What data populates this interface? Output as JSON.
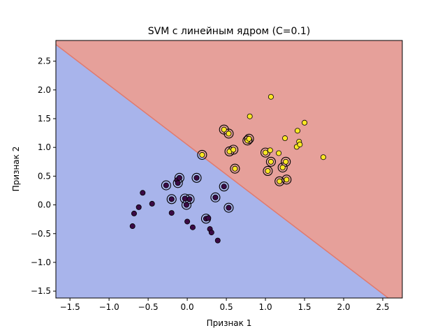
{
  "chart_data": {
    "type": "scatter",
    "title": "SVM с линейным ядром (C=0.1)",
    "xlabel": "Признак 1",
    "ylabel": "Признак 2",
    "xlim": [
      -1.68,
      2.75
    ],
    "ylim": [
      -1.62,
      2.86
    ],
    "x_ticks": [
      -1.5,
      -1.0,
      -0.5,
      0.0,
      0.5,
      1.0,
      1.5,
      2.0,
      2.5
    ],
    "x_tick_labels": [
      "−1.5",
      "−1.0",
      "−0.5",
      "0.0",
      "0.5",
      "1.0",
      "1.5",
      "2.0",
      "2.5"
    ],
    "y_ticks": [
      -1.5,
      -1.0,
      -0.5,
      0.0,
      0.5,
      1.0,
      1.5,
      2.0,
      2.5
    ],
    "y_tick_labels": [
      "−1.5",
      "−1.0",
      "−0.5",
      "0.0",
      "0.5",
      "1.0",
      "1.5",
      "2.0",
      "2.5"
    ],
    "grid": false,
    "decision_boundary": {
      "points": [
        [
          -1.68,
          2.79
        ],
        [
          2.57,
          -1.62
        ]
      ]
    },
    "region_colors": {
      "class_0": "#a8b4eb",
      "class_1": "#e6a09a"
    },
    "boundary_color": "#e07a6e",
    "point_colors": {
      "class_0": "#3b0a45",
      "class_1": "#fde725"
    },
    "support_vector_ring_color": "#000000",
    "series": [
      {
        "class": 0,
        "points": [
          [
            -0.57,
            0.21
          ],
          [
            -0.62,
            -0.04
          ],
          [
            -0.68,
            -0.15
          ],
          [
            -0.7,
            -0.37
          ],
          [
            -0.45,
            0.02
          ],
          [
            -0.2,
            -0.14
          ],
          [
            -0.13,
            0.43
          ],
          [
            -0.27,
            0.34
          ],
          [
            -0.2,
            0.1
          ],
          [
            -0.12,
            0.38
          ],
          [
            -0.1,
            0.47
          ],
          [
            -0.03,
            0.11
          ],
          [
            -0.01,
            0.0
          ],
          [
            0.03,
            0.1
          ],
          [
            0.12,
            0.47
          ],
          [
            0.0,
            -0.29
          ],
          [
            0.07,
            -0.39
          ],
          [
            0.24,
            -0.24
          ],
          [
            0.27,
            -0.23
          ],
          [
            0.29,
            -0.42
          ],
          [
            0.31,
            -0.48
          ],
          [
            0.36,
            0.13
          ],
          [
            0.39,
            -0.62
          ],
          [
            0.47,
            0.32
          ],
          [
            0.53,
            -0.05
          ],
          [
            0.61,
            0.63
          ]
        ]
      },
      {
        "class": 1,
        "points": [
          [
            0.19,
            0.87
          ],
          [
            0.47,
            1.31
          ],
          [
            0.53,
            1.24
          ],
          [
            0.54,
            0.93
          ],
          [
            0.59,
            0.96
          ],
          [
            0.61,
            0.63
          ],
          [
            0.77,
            1.12
          ],
          [
            0.79,
            1.15
          ],
          [
            0.8,
            1.54
          ],
          [
            1.0,
            0.91
          ],
          [
            1.03,
            0.59
          ],
          [
            1.06,
            0.95
          ],
          [
            1.07,
            0.75
          ],
          [
            1.07,
            1.88
          ],
          [
            1.18,
            0.41
          ],
          [
            1.17,
            0.9
          ],
          [
            1.22,
            0.65
          ],
          [
            1.25,
            1.16
          ],
          [
            1.26,
            0.75
          ],
          [
            1.27,
            0.44
          ],
          [
            1.4,
            1.01
          ],
          [
            1.41,
            1.29
          ],
          [
            1.43,
            1.1
          ],
          [
            1.44,
            1.05
          ],
          [
            1.5,
            1.43
          ],
          [
            1.74,
            0.83
          ]
        ]
      }
    ],
    "support_vectors": [
      [
        -0.27,
        0.34
      ],
      [
        -0.2,
        0.1
      ],
      [
        -0.12,
        0.38
      ],
      [
        -0.1,
        0.47
      ],
      [
        -0.03,
        0.11
      ],
      [
        -0.01,
        0.0
      ],
      [
        0.03,
        0.1
      ],
      [
        0.12,
        0.47
      ],
      [
        0.24,
        -0.24
      ],
      [
        0.36,
        0.13
      ],
      [
        0.47,
        0.32
      ],
      [
        0.53,
        -0.05
      ],
      [
        0.61,
        0.63
      ],
      [
        0.19,
        0.87
      ],
      [
        0.47,
        1.31
      ],
      [
        0.53,
        1.24
      ],
      [
        0.54,
        0.93
      ],
      [
        0.59,
        0.96
      ],
      [
        0.77,
        1.12
      ],
      [
        0.79,
        1.15
      ],
      [
        1.0,
        0.91
      ],
      [
        1.03,
        0.59
      ],
      [
        1.07,
        0.75
      ],
      [
        1.18,
        0.41
      ],
      [
        1.22,
        0.65
      ],
      [
        1.26,
        0.75
      ],
      [
        1.27,
        0.44
      ]
    ]
  }
}
